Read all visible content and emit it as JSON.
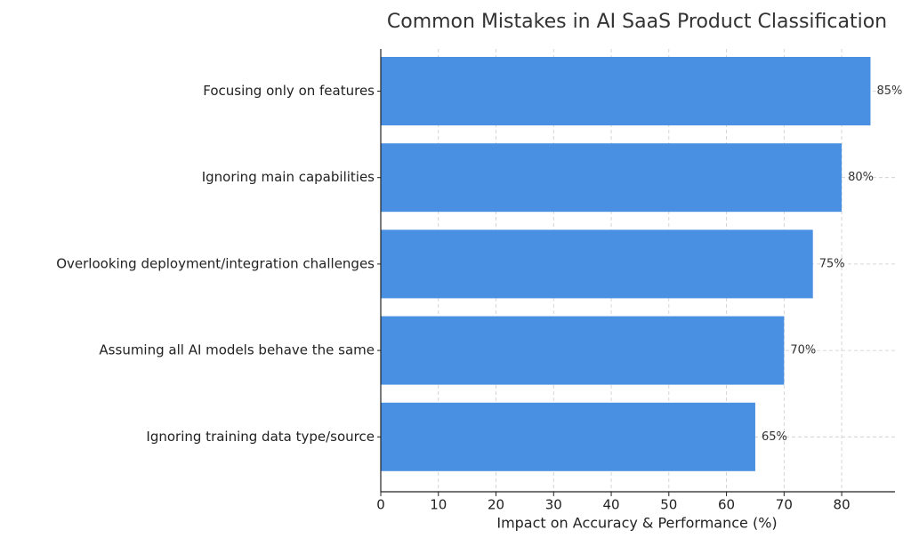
{
  "chart_data": {
    "type": "barh",
    "title": "Common Mistakes in AI SaaS Product Classification",
    "xlabel": "Impact on Accuracy & Performance (%)",
    "categories": [
      "Focusing only on features",
      "Ignoring main capabilities",
      "Overlooking deployment/integration challenges",
      "Assuming all AI models behave the same",
      "Ignoring training data type/source"
    ],
    "values": [
      85,
      80,
      75,
      70,
      65
    ],
    "value_labels": [
      "85%",
      "80%",
      "75%",
      "70%",
      "65%"
    ],
    "color": "#4a90e2",
    "xlim": [
      0,
      89.25
    ],
    "xticks": [
      0,
      10,
      20,
      30,
      40,
      50,
      60,
      70,
      80
    ],
    "grid": true
  }
}
